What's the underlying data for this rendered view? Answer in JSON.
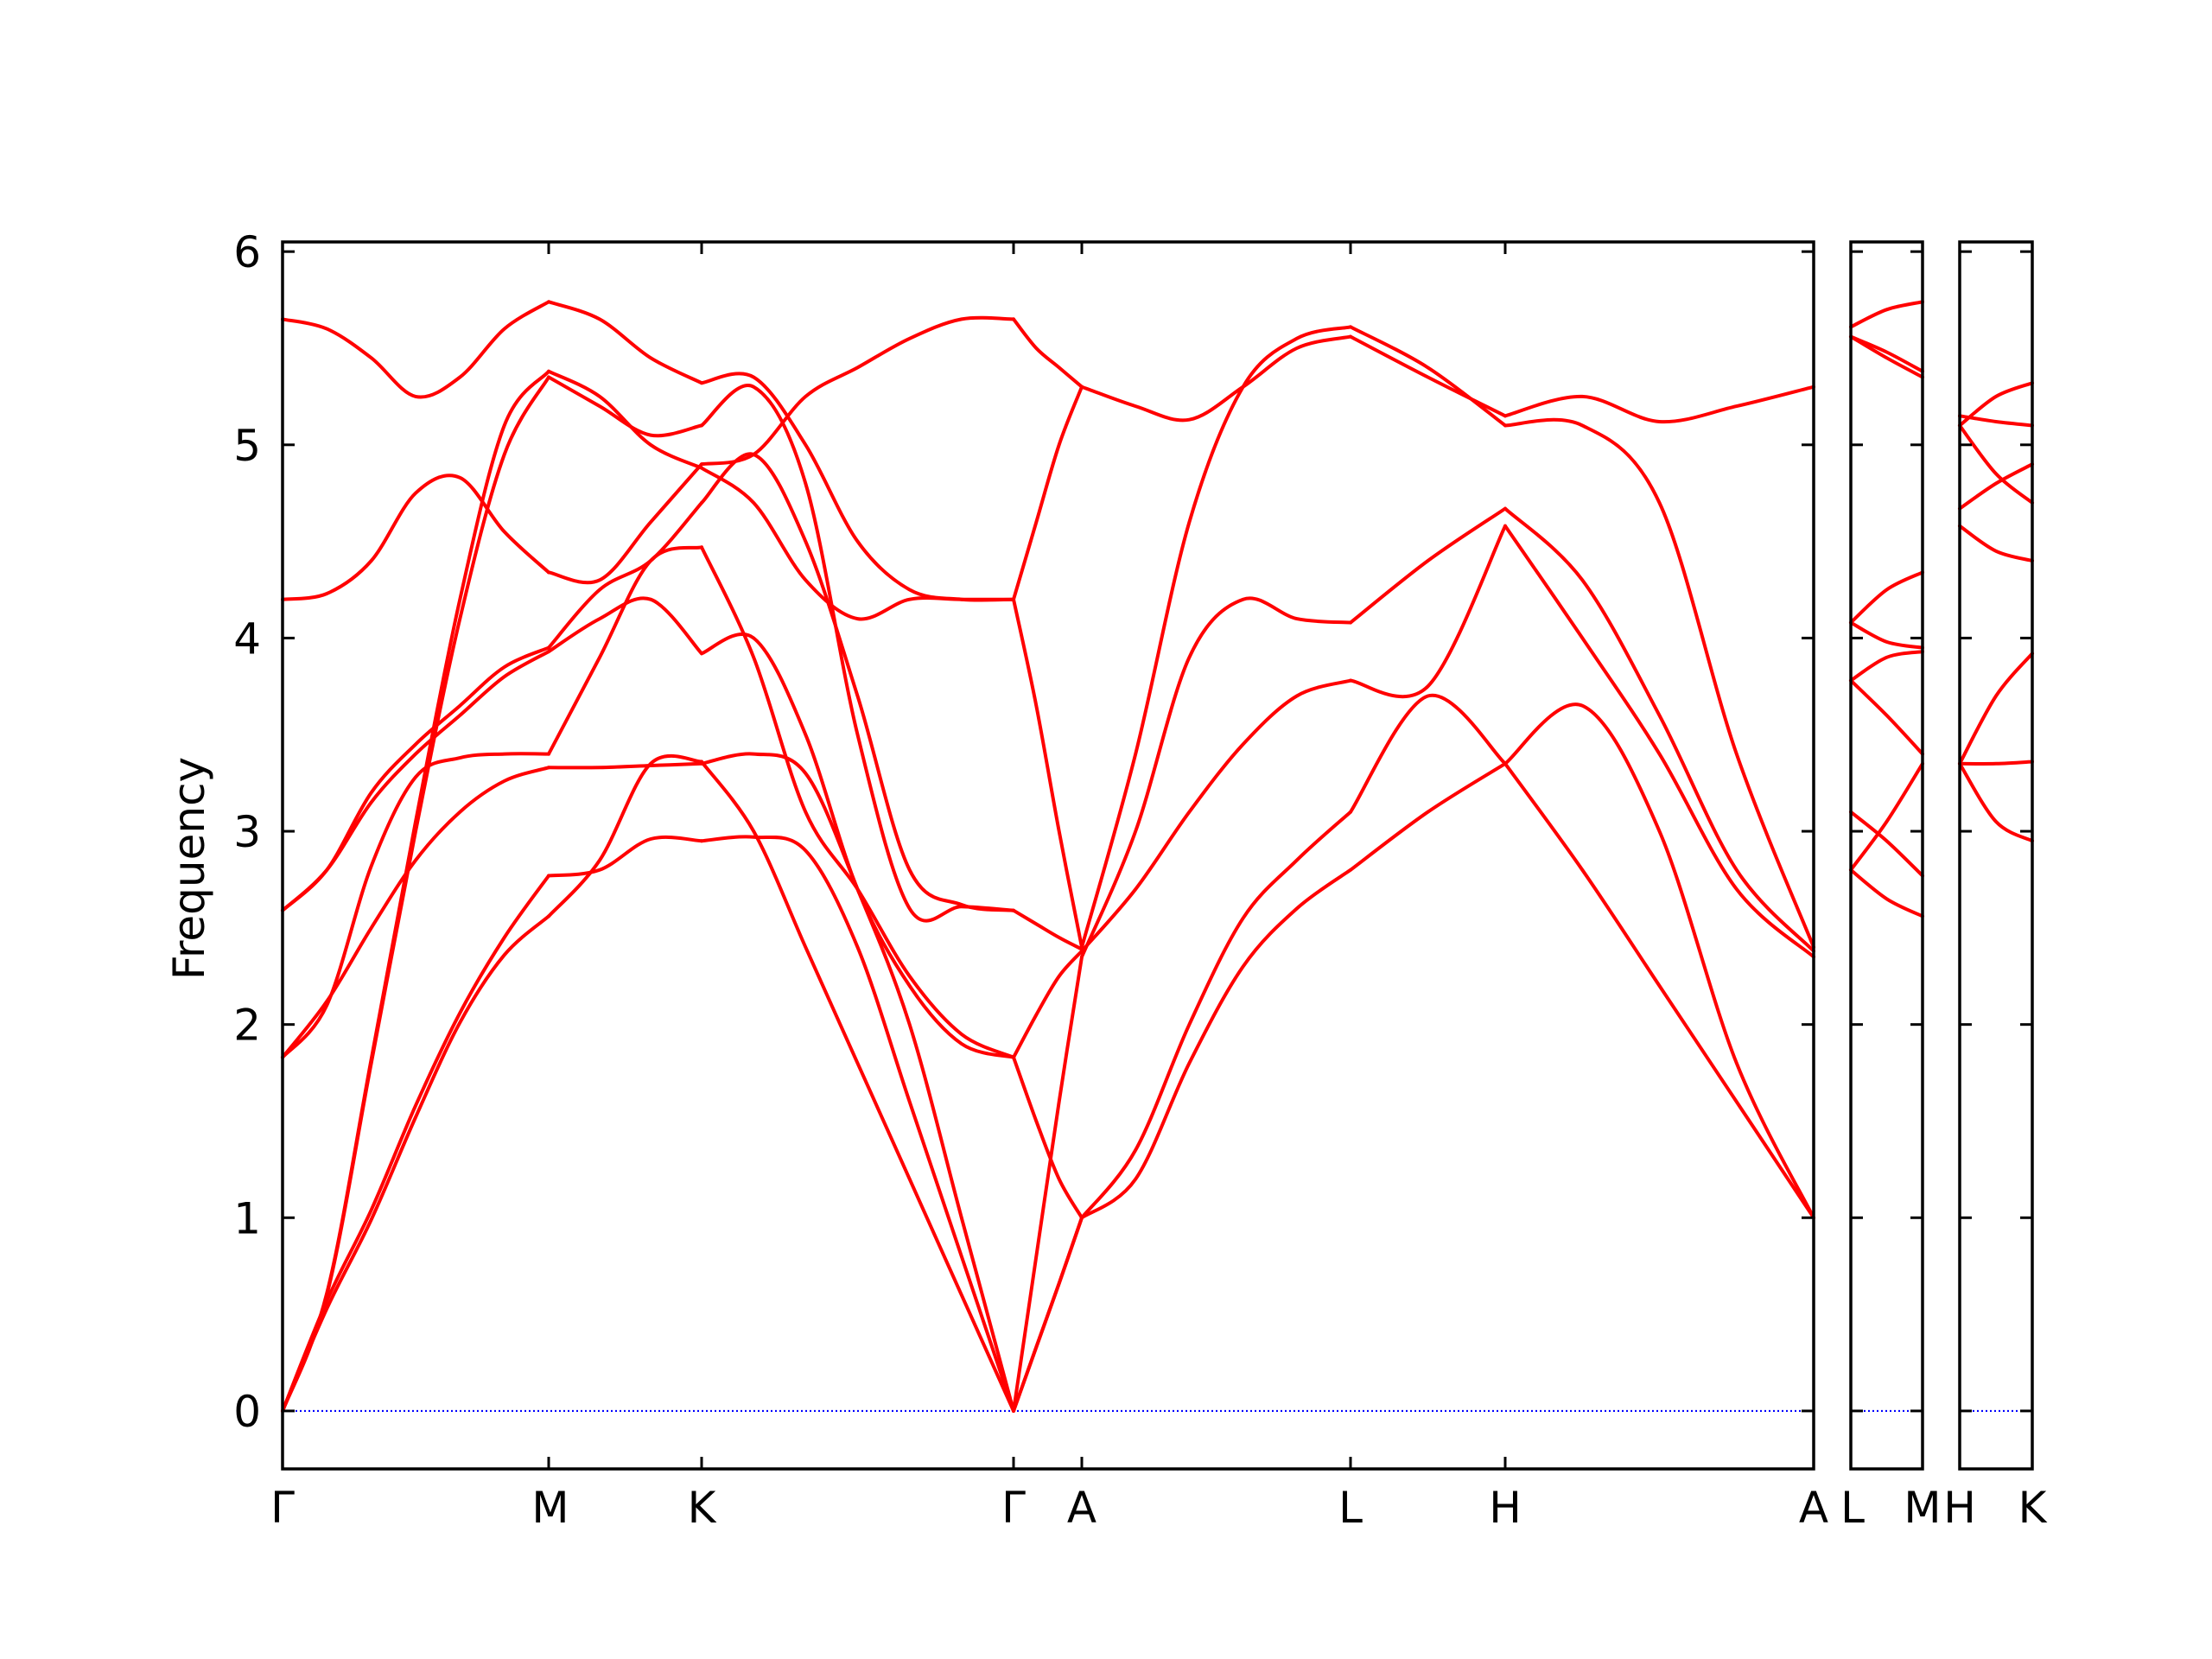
{
  "chart_data": {
    "type": "line",
    "title": "",
    "xlabel": "",
    "ylabel": "Frequency",
    "ylim": [
      -0.3,
      6.05
    ],
    "yticks": [
      0,
      1,
      2,
      3,
      4,
      5,
      6
    ],
    "grid": false,
    "legend": "none",
    "line_color": "#ff0000",
    "zero_line_color": "#0000ff",
    "panels": [
      {
        "segments": [
          {
            "from": "Γ",
            "to": "M",
            "x": [
              0,
              1
            ],
            "bands": [
              [
                0,
                0.53,
                0.99,
                1.52,
                2.01,
                2.36,
                2.56
              ],
              [
                0,
                0.57,
                1.04,
                1.58,
                2.06,
                2.45,
                2.77
              ],
              [
                1.83,
                2.12,
                2.5,
                2.85,
                3.1,
                3.26,
                3.33
              ],
              [
                1.83,
                2.1,
                2.82,
                3.28,
                3.38,
                3.4,
                3.4
              ],
              [
                2.59,
                2.8,
                3.15,
                3.4,
                3.6,
                3.8,
                3.93
              ],
              [
                2.59,
                2.8,
                3.2,
                3.45,
                3.65,
                3.85,
                3.95
              ],
              [
                0,
                0.6,
                1.8,
                3.0,
                4.1,
                4.95,
                5.35
              ],
              [
                0,
                0.61,
                1.82,
                3.05,
                4.2,
                5.1,
                5.38
              ],
              [
                4.2,
                4.23,
                4.4,
                4.75,
                4.83,
                4.55,
                4.34
              ],
              [
                5.65,
                5.6,
                5.45,
                5.25,
                5.35,
                5.6,
                5.74
              ]
            ]
          },
          {
            "from": "M",
            "to": "K",
            "x": [
              0,
              1
            ],
            "bands": [
              [
                2.56,
                2.85,
                3.35,
                3.36
              ],
              [
                2.77,
                2.8,
                2.96,
                2.95
              ],
              [
                3.33,
                3.33,
                3.34,
                3.35
              ],
              [
                3.4,
                3.9,
                4.4,
                4.47
              ],
              [
                3.93,
                4.1,
                4.2,
                3.92
              ],
              [
                3.95,
                4.25,
                4.4,
                4.7
              ],
              [
                5.35,
                5.2,
                5.05,
                5.1
              ],
              [
                5.38,
                5.25,
                5.0,
                4.88
              ],
              [
                4.34,
                4.3,
                4.6,
                4.9
              ],
              [
                5.74,
                5.65,
                5.45,
                5.32
              ]
            ]
          },
          {
            "from": "K",
            "to": "Γ",
            "x": [
              0,
              1
            ],
            "bands": [
              [
                3.36,
                3.0,
                2.4,
                1.8,
                1.2,
                0.6,
                0
              ],
              [
                2.95,
                2.97,
                2.9,
                2.4,
                1.6,
                0.8,
                0
              ],
              [
                3.35,
                3.4,
                3.3,
                2.7,
                2.0,
                1.0,
                0
              ],
              [
                4.47,
                3.9,
                3.1,
                2.7,
                2.25,
                1.95,
                1.83
              ],
              [
                3.92,
                4.0,
                3.5,
                2.7,
                2.2,
                1.9,
                1.83
              ],
              [
                4.7,
                4.95,
                4.5,
                3.7,
                2.8,
                2.62,
                2.59
              ],
              [
                5.1,
                5.3,
                4.8,
                3.5,
                2.6,
                2.61,
                2.59
              ],
              [
                4.88,
                4.7,
                4.3,
                4.1,
                4.2,
                4.2,
                4.2
              ],
              [
                4.9,
                4.95,
                5.25,
                5.4,
                5.55,
                5.65,
                5.65
              ],
              [
                5.32,
                5.35,
                5.0,
                4.5,
                4.25,
                4.2,
                4.2
              ]
            ]
          },
          {
            "from": "Γ",
            "to": "A",
            "x": [
              0,
              1
            ],
            "bands": [
              [
                0,
                0.33,
                0.66,
                1.0
              ],
              [
                0,
                0.33,
                0.66,
                1.0
              ],
              [
                0,
                0.8,
                1.6,
                2.35
              ],
              [
                1.83,
                1.5,
                1.2,
                1.0
              ],
              [
                1.83,
                2.05,
                2.25,
                2.38
              ],
              [
                2.59,
                2.52,
                2.45,
                2.39
              ],
              [
                4.2,
                3.65,
                3.0,
                2.4
              ],
              [
                4.2,
                4.6,
                5.0,
                5.3
              ],
              [
                5.65,
                5.5,
                5.4,
                5.3
              ]
            ]
          },
          {
            "from": "A",
            "to": "L",
            "x": [
              0,
              1
            ],
            "bands": [
              [
                1.0,
                1.2,
                1.8,
                2.3,
                2.6,
                2.8
              ],
              [
                1.0,
                1.35,
                2.0,
                2.55,
                2.85,
                3.1
              ],
              [
                2.38,
                2.7,
                3.1,
                3.45,
                3.7,
                3.78
              ],
              [
                2.35,
                3.0,
                3.9,
                4.2,
                4.1,
                4.08
              ],
              [
                2.4,
                3.4,
                4.6,
                5.3,
                5.55,
                5.61
              ],
              [
                5.3,
                5.2,
                5.13,
                5.3,
                5.5,
                5.56
              ]
            ]
          },
          {
            "from": "L",
            "to": "H",
            "x": [
              0,
              1
            ],
            "bands": [
              [
                2.8,
                3.1,
                3.35
              ],
              [
                3.1,
                3.7,
                3.35
              ],
              [
                3.78,
                3.75,
                4.58
              ],
              [
                4.08,
                4.4,
                4.67
              ],
              [
                5.61,
                5.4,
                5.1
              ],
              [
                5.56,
                5.35,
                5.15
              ]
            ]
          },
          {
            "from": "H",
            "to": "A",
            "x": [
              0,
              1
            ],
            "bands": [
              [
                3.35,
                2.8,
                2.2,
                1.6,
                1.0
              ],
              [
                3.35,
                3.65,
                3.0,
                1.8,
                1.0
              ],
              [
                4.58,
                4.0,
                3.4,
                2.7,
                2.35
              ],
              [
                4.67,
                4.3,
                3.6,
                2.8,
                2.38
              ],
              [
                5.1,
                5.1,
                4.7,
                3.4,
                2.4
              ],
              [
                5.15,
                5.25,
                5.12,
                5.2,
                5.3
              ]
            ]
          }
        ]
      },
      {
        "segments": [
          {
            "from": "L",
            "to": "M",
            "x": [
              0,
              1
            ],
            "bands": [
              [
                2.8,
                2.65,
                2.56
              ],
              [
                2.8,
                3.05,
                3.35
              ],
              [
                3.1,
                2.95,
                2.77
              ],
              [
                3.78,
                3.6,
                3.4
              ],
              [
                3.78,
                3.9,
                3.93
              ],
              [
                4.08,
                3.98,
                3.95
              ],
              [
                4.08,
                4.25,
                4.34
              ],
              [
                5.56,
                5.45,
                5.35
              ],
              [
                5.56,
                5.48,
                5.38
              ],
              [
                5.61,
                5.7,
                5.74
              ]
            ]
          }
        ]
      },
      {
        "segments": [
          {
            "from": "H",
            "to": "K",
            "x": [
              0,
              1
            ],
            "bands": [
              [
                3.35,
                3.05,
                2.95
              ],
              [
                3.35,
                3.35,
                3.36
              ],
              [
                3.35,
                3.7,
                3.92
              ],
              [
                4.58,
                4.45,
                4.4
              ],
              [
                4.67,
                4.8,
                4.9
              ],
              [
                5.1,
                4.85,
                4.7
              ],
              [
                5.1,
                5.25,
                5.32
              ],
              [
                5.15,
                5.12,
                5.1
              ]
            ]
          }
        ]
      }
    ],
    "xtick_labels": [
      "Γ",
      "M",
      "K",
      "Γ",
      "A",
      "L",
      "H",
      "A",
      "L",
      "M",
      "H",
      "K"
    ],
    "ytick_labels": [
      "0",
      "1",
      "2",
      "3",
      "4",
      "5",
      "6"
    ]
  }
}
